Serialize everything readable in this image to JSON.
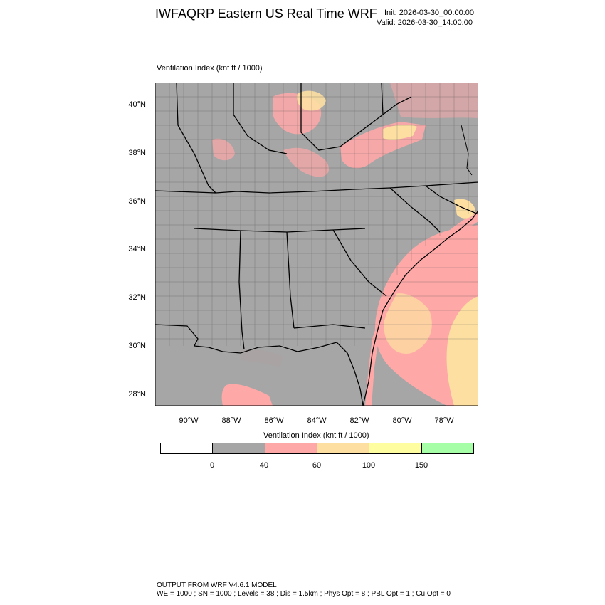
{
  "header": {
    "title": "IWFAQRP Eastern US Real Time WRF",
    "init": "Init: 2026-03-30_00:00:00",
    "valid": "Valid: 2026-03-30_14:00:00"
  },
  "map": {
    "field_label": "Ventilation Index   (knt ft / 1000)",
    "lat_labels": [
      "40°N",
      "38°N",
      "36°N",
      "34°N",
      "32°N",
      "30°N",
      "28°N"
    ],
    "lon_labels": [
      "90°W",
      "88°W",
      "86°W",
      "84°W",
      "82°W",
      "80°W",
      "78°W"
    ],
    "colors": {
      "land_low": "#a6a6a6",
      "pink": "#ffa8a8",
      "peach": "#fedfa2",
      "yellow": "#fefea0",
      "boundary": "#000000"
    }
  },
  "colorbar": {
    "title": "Ventilation Index  (knt ft / 1000)",
    "colors": [
      "#ffffff",
      "#a6a6a6",
      "#ffa8a8",
      "#fedfa2",
      "#fefea0",
      "#a6fea6"
    ],
    "tick_labels": [
      "0",
      "40",
      "60",
      "100",
      "150"
    ]
  },
  "footer": {
    "line1": "OUTPUT FROM WRF V4.6.1 MODEL",
    "line2": "WE = 1000 ; SN = 1000 ; Levels = 38 ; Dis = 1.5km ; Phys Opt = 8 ; PBL Opt = 1 ; Cu Opt = 0"
  }
}
